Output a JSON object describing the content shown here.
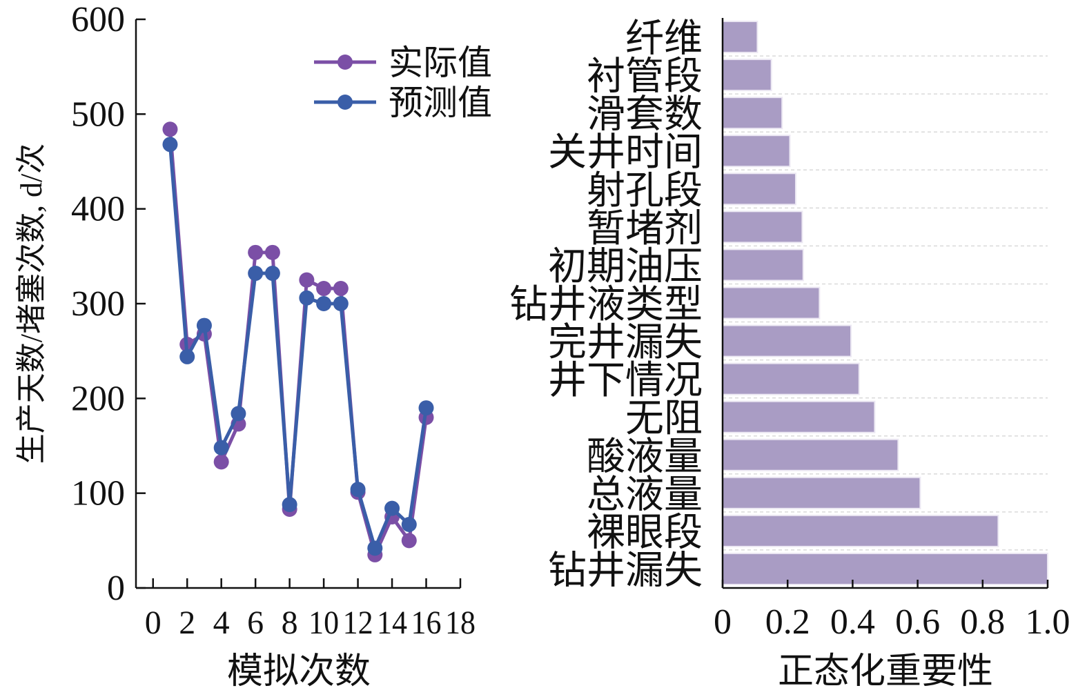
{
  "chart_data": [
    {
      "type": "line",
      "xlabel": "模拟次数",
      "ylabel": "生产天数/堵塞次数, d/次",
      "xlim": [
        -1,
        18
      ],
      "ylim": [
        0,
        600
      ],
      "xticks": [
        0,
        2,
        4,
        6,
        8,
        10,
        12,
        14,
        16,
        18
      ],
      "yticks": [
        0,
        100,
        200,
        300,
        400,
        500,
        600
      ],
      "x": [
        1,
        2,
        3,
        4,
        5,
        6,
        7,
        8,
        9,
        10,
        11,
        12,
        13,
        14,
        15,
        16
      ],
      "series": [
        {
          "name": "实际值",
          "color": "#7b4fa6",
          "values": [
            484,
            257,
            268,
            133,
            173,
            354,
            354,
            83,
            325,
            316,
            316,
            101,
            35,
            75,
            50,
            180
          ]
        },
        {
          "name": "预测值",
          "color": "#3a5ea8",
          "values": [
            468,
            244,
            277,
            148,
            184,
            332,
            332,
            88,
            306,
            300,
            300,
            104,
            42,
            84,
            67,
            190
          ]
        }
      ],
      "legend": "top-right"
    },
    {
      "type": "bar",
      "orientation": "horizontal",
      "xlabel": "正态化重要性",
      "xlim": [
        0,
        1.0
      ],
      "xticks": [
        "0",
        "0.2",
        "0.4",
        "0.6",
        "0.8",
        "1.0"
      ],
      "bar_color": "#a99cc4",
      "categories": [
        "纤维",
        "衬管段",
        "滑套数",
        "关井时间",
        "射孔段",
        "暂堵剂",
        "初期油压",
        "钻井液类型",
        "完井漏失",
        "井下情况",
        "无阻",
        "酸液量",
        "总液量",
        "裸眼段",
        "钻井漏失"
      ],
      "values": [
        0.107,
        0.15,
        0.183,
        0.207,
        0.225,
        0.245,
        0.248,
        0.298,
        0.395,
        0.42,
        0.468,
        0.54,
        0.608,
        0.848,
        1.0
      ],
      "grid": "horizontal dashed"
    }
  ]
}
